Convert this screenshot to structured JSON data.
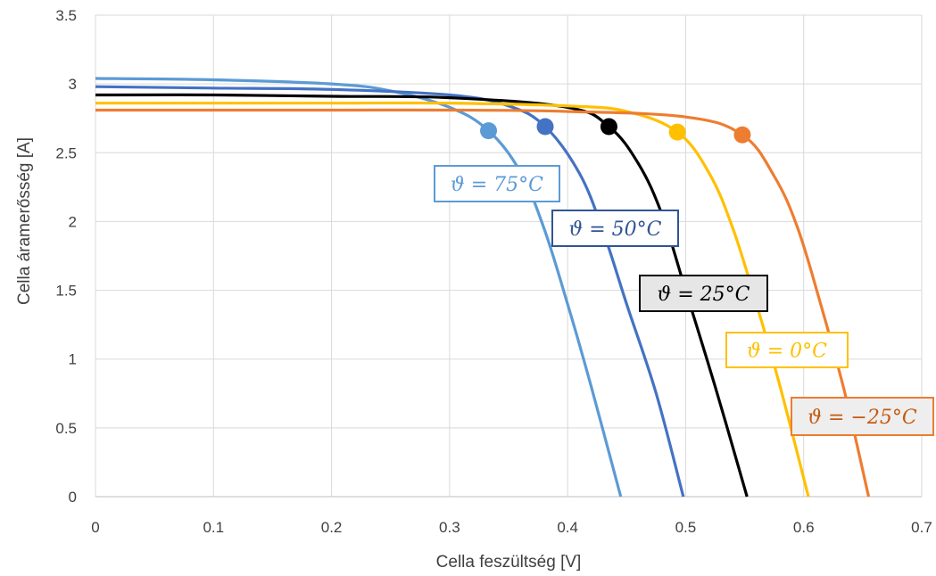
{
  "chart_data": {
    "type": "line",
    "xlabel": "Cella feszültség [V]",
    "ylabel": "Cella áramerősség [A]",
    "xlim": [
      0,
      0.7
    ],
    "ylim": [
      0,
      3.5
    ],
    "x_ticks": [
      "0",
      "0.1",
      "0.2",
      "0.3",
      "0.4",
      "0.5",
      "0.6",
      "0.7"
    ],
    "y_ticks": [
      "0",
      "0.5",
      "1",
      "1.5",
      "2",
      "2.5",
      "3",
      "3.5"
    ],
    "grid": true,
    "series": [
      {
        "name": "ϑ = 75°C",
        "color": "#5b9bd5",
        "isc": 3.04,
        "voc": 0.445,
        "mpp": [
          0.333,
          2.66
        ],
        "x": [
          0,
          0.1,
          0.2,
          0.25,
          0.3,
          0.333,
          0.36,
          0.38,
          0.4,
          0.42,
          0.445
        ],
        "y": [
          3.04,
          3.03,
          3.0,
          2.95,
          2.83,
          2.66,
          2.36,
          1.95,
          1.4,
          0.8,
          0
        ]
      },
      {
        "name": "ϑ = 50°C",
        "color": "#4472c4",
        "isc": 2.98,
        "voc": 0.498,
        "mpp": [
          0.381,
          2.69
        ],
        "x": [
          0,
          0.1,
          0.2,
          0.3,
          0.35,
          0.381,
          0.41,
          0.43,
          0.45,
          0.475,
          0.498
        ],
        "y": [
          2.98,
          2.97,
          2.96,
          2.92,
          2.84,
          2.69,
          2.35,
          1.93,
          1.4,
          0.75,
          0
        ]
      },
      {
        "name": "ϑ = 25°C",
        "color": "#000000",
        "isc": 2.92,
        "voc": 0.552,
        "mpp": [
          0.435,
          2.69
        ],
        "x": [
          0,
          0.1,
          0.2,
          0.3,
          0.4,
          0.435,
          0.46,
          0.48,
          0.5,
          0.525,
          0.552
        ],
        "y": [
          2.92,
          2.92,
          2.91,
          2.9,
          2.83,
          2.69,
          2.42,
          2.05,
          1.5,
          0.8,
          0
        ]
      },
      {
        "name": "ϑ = 0°C",
        "color": "#ffc000",
        "isc": 2.86,
        "voc": 0.604,
        "mpp": [
          0.493,
          2.65
        ],
        "x": [
          0,
          0.1,
          0.2,
          0.3,
          0.4,
          0.45,
          0.493,
          0.52,
          0.54,
          0.56,
          0.58,
          0.604
        ],
        "y": [
          2.86,
          2.86,
          2.86,
          2.86,
          2.84,
          2.8,
          2.65,
          2.35,
          1.95,
          1.4,
          0.8,
          0
        ]
      },
      {
        "name": "ϑ = −25°C",
        "color": "#ed7d31",
        "isc": 2.81,
        "voc": 0.655,
        "mpp": [
          0.548,
          2.63
        ],
        "x": [
          0,
          0.1,
          0.2,
          0.3,
          0.4,
          0.5,
          0.548,
          0.575,
          0.595,
          0.615,
          0.635,
          0.655
        ],
        "y": [
          2.81,
          2.81,
          2.81,
          2.81,
          2.8,
          2.76,
          2.63,
          2.33,
          1.95,
          1.38,
          0.75,
          0
        ]
      }
    ],
    "annotations": [
      {
        "text": "ϑ = 75°C",
        "color": "#5b9bd5",
        "bg": "#ffffff",
        "border": "#5b9bd5"
      },
      {
        "text": "ϑ = 50°C",
        "color": "#2f5597",
        "bg": "#ffffff",
        "border": "#2f5597"
      },
      {
        "text": "ϑ = 25°C",
        "color": "#000000",
        "bg": "#e7e6e6",
        "border": "#000000"
      },
      {
        "text": "ϑ = 0°C",
        "color": "#ffc000",
        "bg": "#ffffff",
        "border": "#ffc000"
      },
      {
        "text": "ϑ = −25°C",
        "color": "#c55a11",
        "bg": "#eeeeee",
        "border": "#ed7d31"
      }
    ]
  }
}
